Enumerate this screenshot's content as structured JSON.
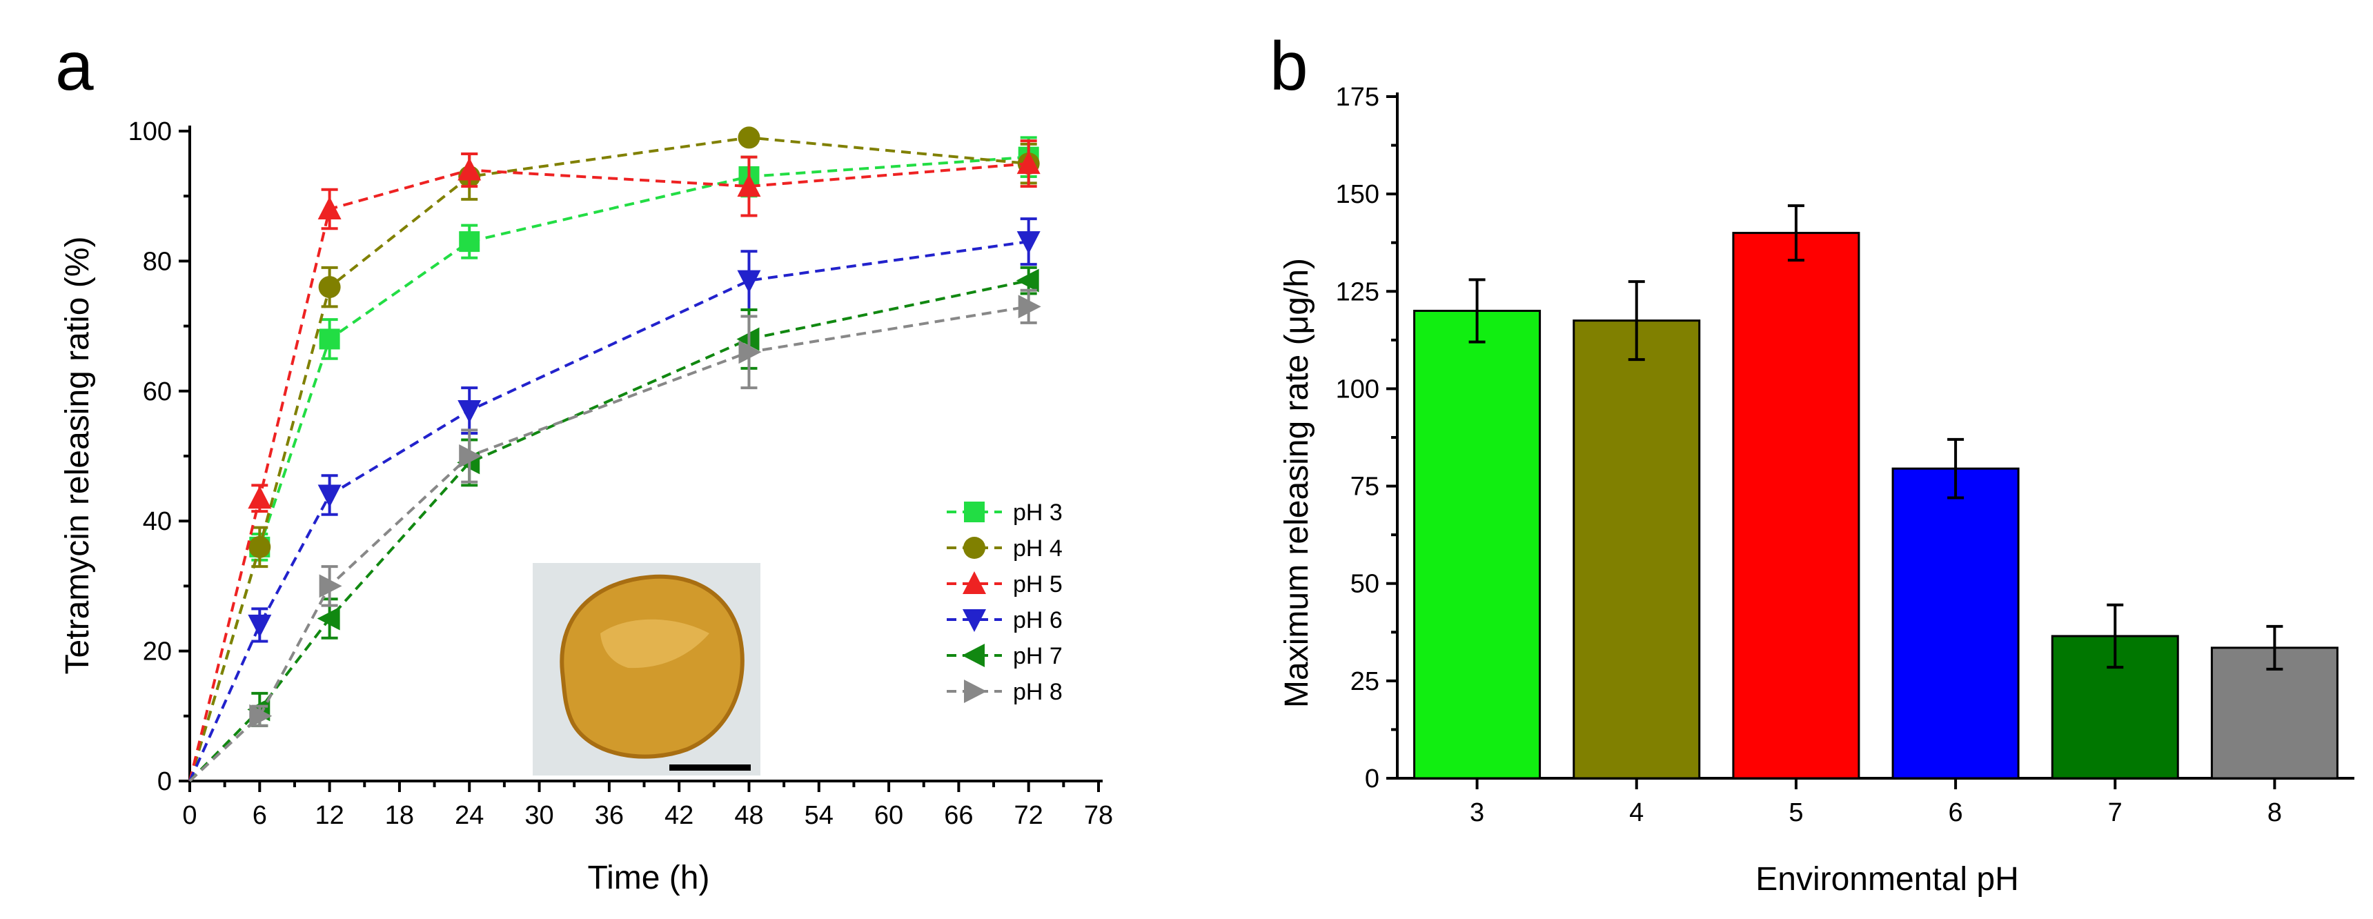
{
  "chart_data": [
    {
      "panel": "a",
      "type": "line",
      "xlabel": "Time (h)",
      "ylabel": "Tetramycin releasing ratio (%)",
      "xlim": [
        0,
        78
      ],
      "ylim": [
        0,
        100
      ],
      "xticks": [
        0,
        6,
        12,
        18,
        24,
        30,
        36,
        42,
        48,
        54,
        60,
        66,
        72,
        78
      ],
      "yticks": [
        0,
        20,
        40,
        60,
        80,
        100
      ],
      "x": [
        0,
        6,
        12,
        24,
        48,
        72
      ],
      "legend_position": "right",
      "inset": {
        "description": "photo of amber disc with scale bar"
      },
      "series": [
        {
          "name": "pH 3",
          "color": "#22dd44",
          "marker": "square",
          "values": [
            0,
            36,
            68,
            83,
            93,
            96
          ],
          "errors": [
            0,
            2,
            3,
            2.5,
            3,
            3
          ]
        },
        {
          "name": "pH 4",
          "color": "#808000",
          "marker": "circle",
          "values": [
            0,
            36,
            76,
            93,
            99,
            95
          ],
          "errors": [
            0,
            3,
            3,
            3.5,
            0,
            3
          ]
        },
        {
          "name": "pH 5",
          "color": "#ee2222",
          "marker": "triangle-up",
          "values": [
            0,
            43.5,
            88,
            94,
            91.5,
            95
          ],
          "errors": [
            0,
            2,
            3,
            2.5,
            4.5,
            3.5
          ]
        },
        {
          "name": "pH 6",
          "color": "#2222cc",
          "marker": "triangle-down",
          "values": [
            0,
            24,
            44,
            57,
            77,
            83
          ],
          "errors": [
            0,
            2.5,
            3,
            3.5,
            4.5,
            3.5
          ]
        },
        {
          "name": "pH 7",
          "color": "#118811",
          "marker": "triangle-left",
          "values": [
            0,
            11,
            25,
            49,
            68,
            77
          ],
          "errors": [
            0,
            2.5,
            3,
            3.5,
            4.5,
            2
          ]
        },
        {
          "name": "pH 8",
          "color": "#888888",
          "marker": "triangle-right",
          "values": [
            0,
            10,
            30,
            50,
            66,
            73
          ],
          "errors": [
            0,
            1.5,
            3,
            4,
            5.5,
            2.5
          ]
        }
      ]
    },
    {
      "panel": "b",
      "type": "bar",
      "xlabel": "Environmental pH",
      "ylabel": "Maximum releasing rate (μg/h)",
      "ylim": [
        0,
        175
      ],
      "yticks": [
        0,
        25,
        50,
        75,
        100,
        125,
        150,
        175
      ],
      "categories": [
        "3",
        "4",
        "5",
        "6",
        "7",
        "8"
      ],
      "values": [
        120,
        117.5,
        140,
        79.5,
        36.5,
        33.5
      ],
      "errors": [
        8,
        10,
        7,
        7.5,
        8,
        5.5
      ],
      "colors": [
        "#11ee11",
        "#808000",
        "#ff0000",
        "#0000ff",
        "#007700",
        "#808080"
      ]
    }
  ]
}
